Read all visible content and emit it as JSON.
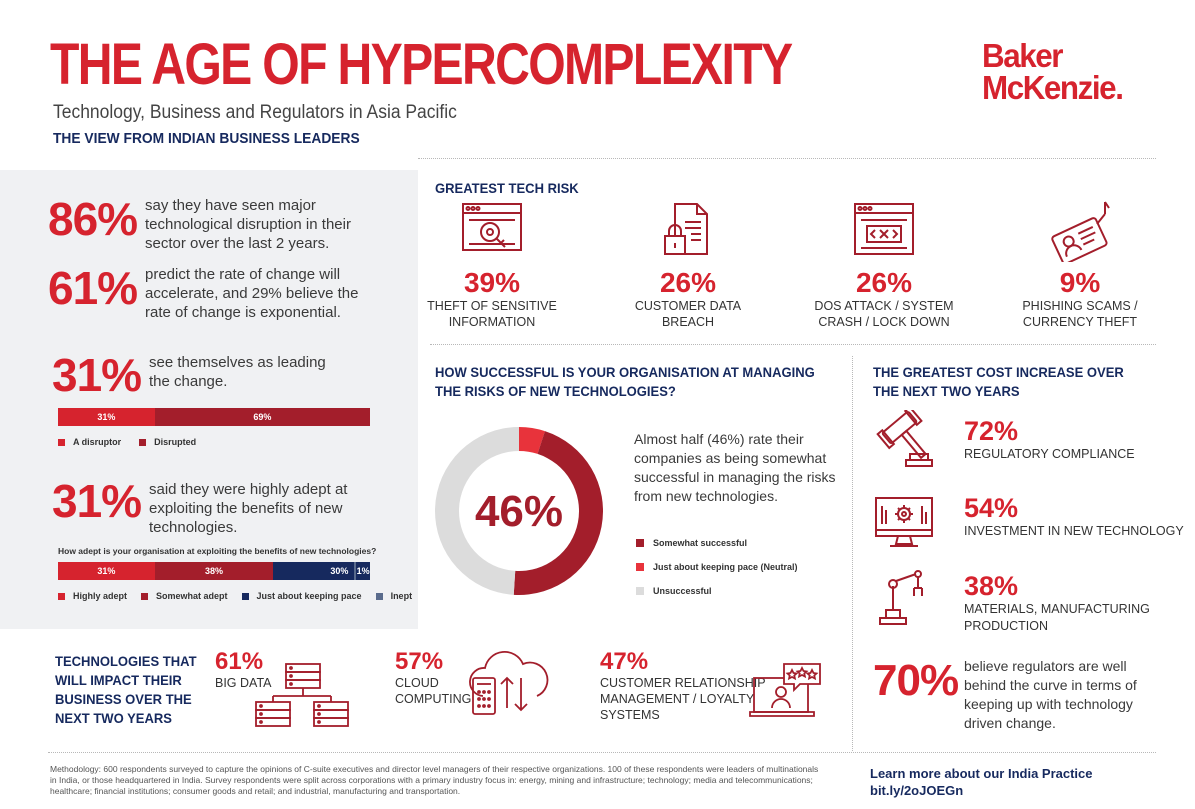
{
  "header": {
    "title": "THE AGE OF HYPERCOMPLEXITY",
    "subtitle": "Technology, Business and Regulators in Asia Pacific",
    "kicker": "THE VIEW FROM INDIAN BUSINESS LEADERS",
    "logo_line1": "Baker",
    "logo_line2": "McKenzie."
  },
  "left": {
    "stat1": {
      "pct": "86%",
      "text": "say they have seen major technological disruption in their sector over the last 2 years."
    },
    "stat2": {
      "pct": "61%",
      "text": "predict the rate of change will accelerate, and 29% believe the rate of change is exponential."
    },
    "stat3": {
      "pct": "31%",
      "text": "see themselves as leading the change."
    },
    "bar1": {
      "segments": [
        {
          "label": "31%",
          "value": 31,
          "color": "#d6232e"
        },
        {
          "label": "69%",
          "value": 69,
          "color": "#a31e2b"
        }
      ],
      "legend": [
        {
          "label": "A disruptor",
          "color": "#d6232e"
        },
        {
          "label": "Disrupted",
          "color": "#a31e2b"
        }
      ]
    },
    "stat4": {
      "pct": "31%",
      "text": "said they were highly adept at exploiting the benefits of new technologies."
    },
    "bar2": {
      "question": "How adept is your organisation at exploiting the benefits of new technologies?",
      "segments": [
        {
          "label": "31%",
          "value": 31,
          "color": "#d6232e"
        },
        {
          "label": "38%",
          "value": 38,
          "color": "#a31e2b"
        },
        {
          "label": "30%",
          "value": 30,
          "color": "#16295e"
        },
        {
          "label": "1%",
          "value": 1,
          "color": "#5a6b8c"
        }
      ],
      "legend": [
        {
          "label": "Highly adept",
          "color": "#d6232e"
        },
        {
          "label": "Somewhat adept",
          "color": "#a31e2b"
        },
        {
          "label": "Just about keeping pace",
          "color": "#16295e"
        },
        {
          "label": "Inept",
          "color": "#5a6b8c"
        }
      ]
    }
  },
  "tech_risk": {
    "heading": "GREATEST TECH RISK",
    "items": [
      {
        "pct": "39%",
        "label_line1": "THEFT OF SENSITIVE",
        "label_line2": "INFORMATION",
        "icon": "browser-key-icon"
      },
      {
        "pct": "26%",
        "label_line1": "CUSTOMER DATA",
        "label_line2": "BREACH",
        "icon": "document-lock-icon"
      },
      {
        "pct": "26%",
        "label_line1": "DOS ATTACK / SYSTEM",
        "label_line2": "CRASH / LOCK DOWN",
        "icon": "browser-code-icon"
      },
      {
        "pct": "9%",
        "label_line1": "PHISHING SCAMS /",
        "label_line2": "CURRENCY THEFT",
        "icon": "id-card-hook-icon"
      }
    ]
  },
  "managing": {
    "heading_line1": "HOW SUCCESSFUL IS YOUR ORGANISATION AT MANAGING",
    "heading_line2": "THE RISKS OF NEW TECHNOLOGIES?",
    "center_label": "46%",
    "description": "Almost half (46%) rate their companies as being somewhat successful in managing the risks from new technologies.",
    "legend": [
      {
        "label": "Somewhat successful",
        "color": "#a31e2b"
      },
      {
        "label": "Just about keeping pace (Neutral)",
        "color": "#e8333b"
      },
      {
        "label": "Unsuccessful",
        "color": "#dcdcdc"
      }
    ]
  },
  "chart_data": {
    "type": "pie",
    "categories": [
      "Somewhat successful",
      "Just about keeping pace (Neutral)",
      "Unsuccessful"
    ],
    "values": [
      46,
      5,
      49
    ],
    "colors": [
      "#a31e2b",
      "#e8333b",
      "#dcdcdc"
    ],
    "center_label": "46%"
  },
  "cost": {
    "heading_line1": "THE GREATEST COST INCREASE OVER",
    "heading_line2": "THE NEXT TWO YEARS",
    "items": [
      {
        "pct": "72%",
        "label_line1": "REGULATORY COMPLIANCE",
        "label_line2": "",
        "icon": "gavel-icon"
      },
      {
        "pct": "54%",
        "label_line1": "INVESTMENT IN NEW TECHNOLOGY",
        "label_line2": "",
        "icon": "monitor-gear-icon"
      },
      {
        "pct": "38%",
        "label_line1": "MATERIALS, MANUFACTURING",
        "label_line2": "PRODUCTION",
        "icon": "robot-arm-icon"
      }
    ],
    "regulators": {
      "pct": "70%",
      "text": "believe regulators are well behind the curve in terms of keeping up with technology driven change."
    }
  },
  "technologies": {
    "heading_line1": "TECHNOLOGIES THAT",
    "heading_line2": "WILL IMPACT THEIR",
    "heading_line3": "BUSINESS OVER THE",
    "heading_line4": "NEXT TWO YEARS",
    "items": [
      {
        "pct": "61%",
        "label_line1": "BIG DATA",
        "label_line2": "",
        "label_line3": "",
        "icon": "database-network-icon"
      },
      {
        "pct": "57%",
        "label_line1": "CLOUD",
        "label_line2": "COMPUTING",
        "label_line3": "",
        "icon": "cloud-upload-icon"
      },
      {
        "pct": "47%",
        "label_line1": "CUSTOMER RELATIONSHIP",
        "label_line2": "MANAGEMENT / LOYALTY",
        "label_line3": "SYSTEMS",
        "icon": "laptop-stars-icon"
      }
    ]
  },
  "footer": {
    "methodology": "Methodology: 600 respondents surveyed to capture the opinions of C-suite executives and director level managers of their respective organizations. 100 of these respondents were leaders of multinationals in India, or those headquartered in India. Survey respondents were split across corporations with a primary industry focus in: energy, mining and infrastructure; technology; media and telecommunications; healthcare; financial institutions; consumer goods and retail; and industrial, manufacturing and transportation.",
    "learn_more": "Learn more about our India Practice",
    "link": "bit.ly/2oJOEGn"
  }
}
